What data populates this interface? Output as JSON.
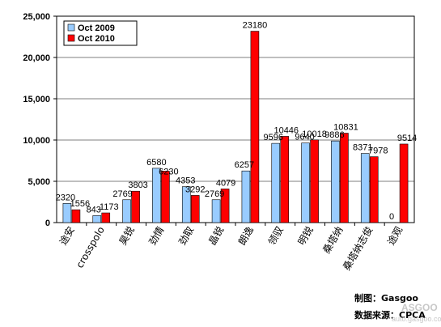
{
  "chart_data": {
    "type": "bar",
    "title": "",
    "xlabel": "",
    "ylabel": "",
    "ylim": [
      0,
      25000
    ],
    "yticks": [
      0,
      5000,
      10000,
      15000,
      20000,
      25000
    ],
    "ytick_labels": [
      "0",
      "5,000",
      "10,000",
      "15,000",
      "20,000",
      "25,000"
    ],
    "grid": true,
    "legend_position": "top-left",
    "categories": [
      "途安",
      "crosspolo",
      "昊锐",
      "劲情",
      "劲取",
      "晶锐",
      "朗逸",
      "领驭",
      "明锐",
      "桑塔纳",
      "桑塔纳志俊",
      "途观"
    ],
    "series": [
      {
        "name": "Oct 2009",
        "color": "#99ccff",
        "values": [
          2320,
          843,
          2769,
          6580,
          4353,
          2769,
          6257,
          9596,
          9640,
          9886,
          8371,
          0
        ],
        "labels": [
          "2320",
          "843",
          "2769",
          "6580",
          "4353",
          "2769",
          "6257",
          "9596",
          "9640",
          "9886",
          "8371",
          "0"
        ]
      },
      {
        "name": "Oct 2010",
        "color": "#ff0000",
        "values": [
          1556,
          1173,
          3803,
          6230,
          3292,
          4079,
          23180,
          10446,
          10018,
          10831,
          7978,
          9514
        ],
        "labels": [
          "1556",
          "1173",
          "3803",
          "6230",
          "3292",
          "4079",
          "23180",
          "10446",
          "10018",
          "10831",
          "7978",
          "9514"
        ]
      }
    ]
  },
  "credits": {
    "made_by": "制图：Gasgoo",
    "source": "数据来源：CPCA"
  },
  "watermark": {
    "logo": "ASGOO",
    "url": "auto.gasgoo.com"
  }
}
